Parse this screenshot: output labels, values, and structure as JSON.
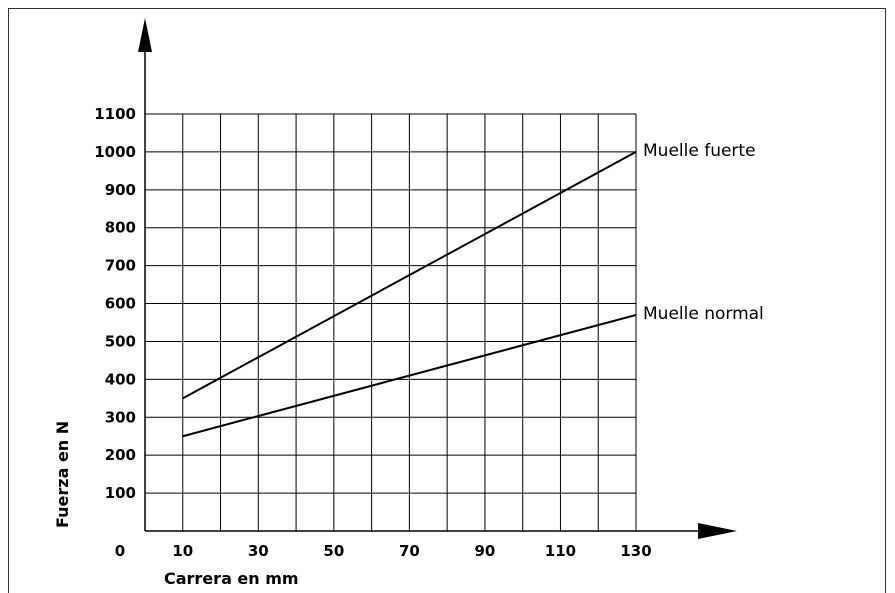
{
  "chart_data": {
    "type": "line",
    "title": "",
    "xlabel": "Carrera en mm",
    "ylabel": "Fuerza en N",
    "xlim": [
      0,
      130
    ],
    "ylim": [
      0,
      1100
    ],
    "x_ticks": [
      "0",
      "10",
      "30",
      "50",
      "70",
      "90",
      "110",
      "130"
    ],
    "y_ticks": [
      "100",
      "200",
      "300",
      "400",
      "500",
      "600",
      "700",
      "800",
      "900",
      "1000",
      "1100"
    ],
    "grid": true,
    "series": [
      {
        "name": "Muelle fuerte",
        "x": [
          10,
          130
        ],
        "y": [
          350,
          1000
        ]
      },
      {
        "name": "Muelle normal",
        "x": [
          10,
          130
        ],
        "y": [
          250,
          570
        ]
      }
    ]
  }
}
